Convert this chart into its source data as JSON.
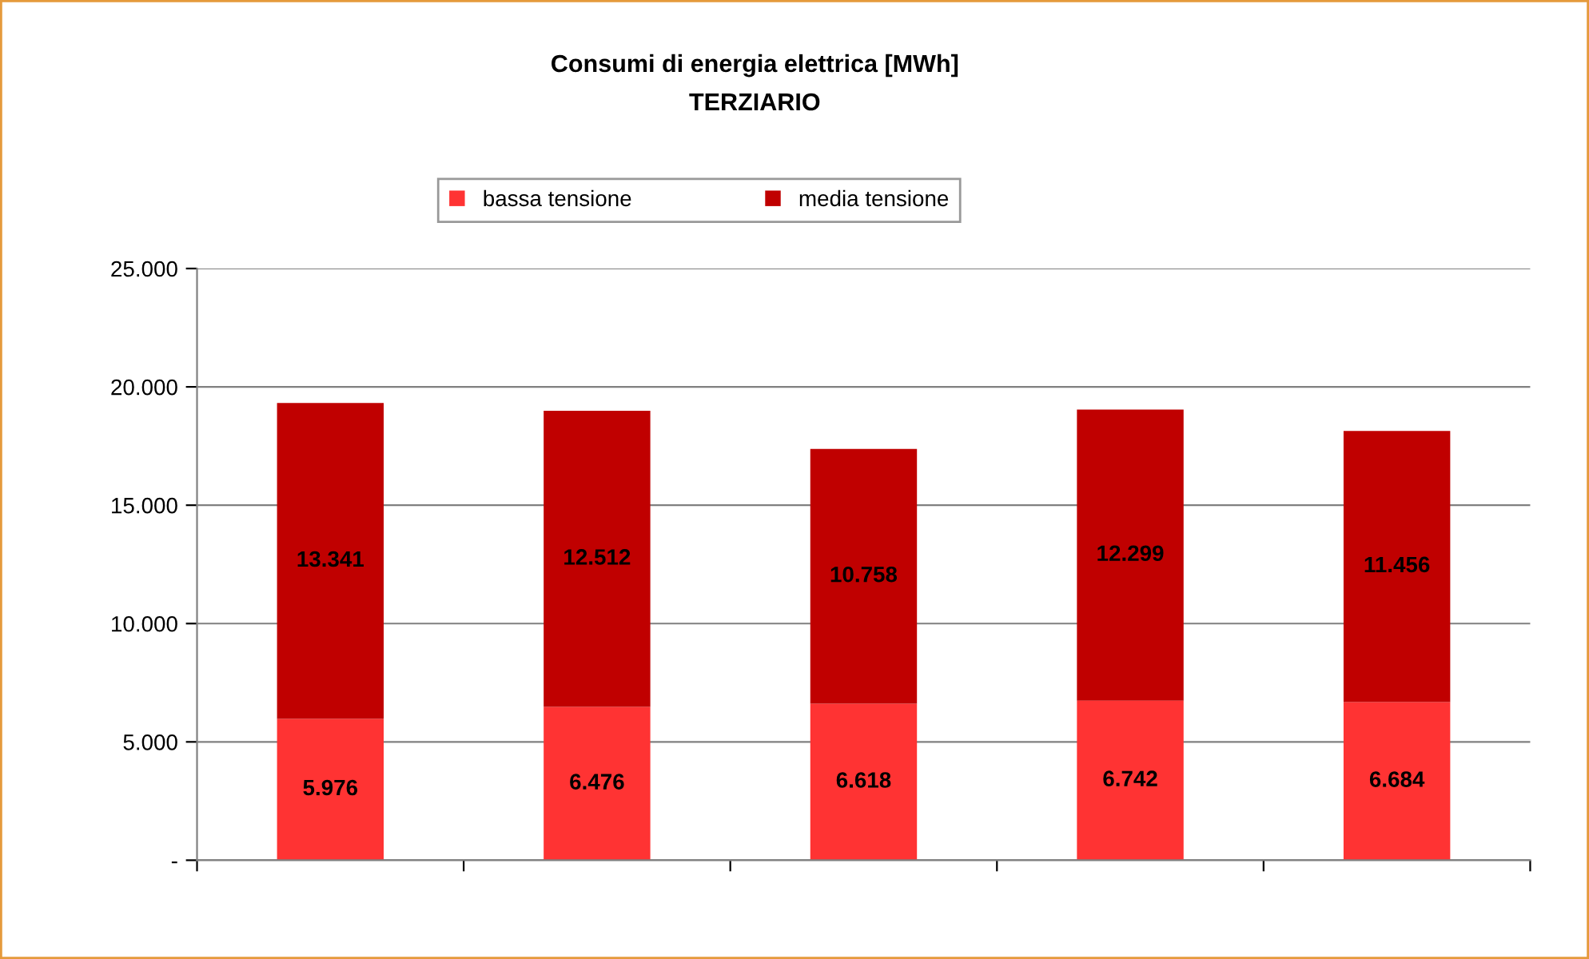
{
  "chart_data": {
    "type": "bar",
    "title": "Consumi di energia elettrica [MWh]",
    "subtitle": "TERZIARIO",
    "categories": [
      null,
      null,
      null,
      null,
      null
    ],
    "stacked": true,
    "series": [
      {
        "name": "bassa tensione",
        "color": "#ff3333",
        "values": [
          5976,
          6476,
          6618,
          6742,
          6684
        ],
        "value_labels": [
          "5.976",
          "6.476",
          "6.618",
          "6.742",
          "6.684"
        ]
      },
      {
        "name": "media tensione",
        "color": "#c00000",
        "values": [
          13341,
          12512,
          10758,
          12299,
          11456
        ],
        "value_labels": [
          "13.341",
          "12.512",
          "10.758",
          "12.299",
          "11.456"
        ]
      }
    ],
    "ylim": [
      0,
      25000
    ],
    "yticks": [
      {
        "value": 0,
        "label": "-"
      },
      {
        "value": 5000,
        "label": "5.000"
      },
      {
        "value": 10000,
        "label": "10.000"
      },
      {
        "value": 15000,
        "label": "15.000"
      },
      {
        "value": 20000,
        "label": "20.000"
      },
      {
        "value": 25000,
        "label": "25.000"
      }
    ],
    "grid": "y",
    "legend": "top"
  }
}
